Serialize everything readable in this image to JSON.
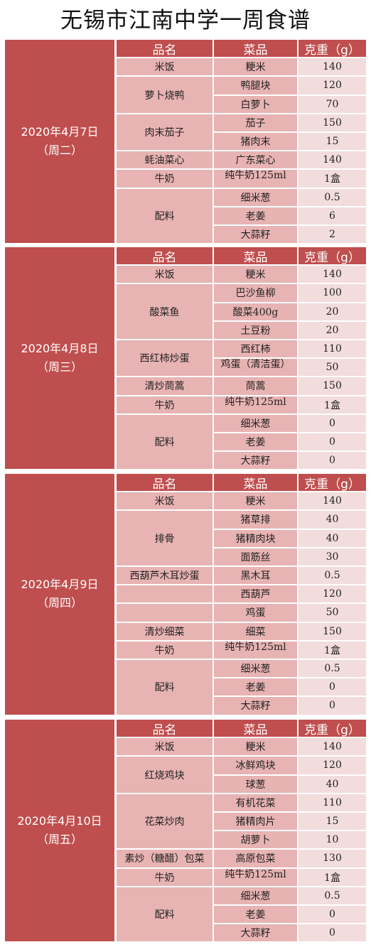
{
  "title": "无锡市江南中学一周食谱",
  "header": {
    "dish": "品名",
    "item": "菜品",
    "weight": "克重（g）"
  },
  "days": [
    {
      "date": "2020年4月7日",
      "weekday": "（周二）",
      "dishes": [
        {
          "name": "米饭",
          "items": [
            {
              "item": "粳米",
              "weight": "140"
            }
          ]
        },
        {
          "name": "萝卜烧鸭",
          "items": [
            {
              "item": "鸭腿块",
              "weight": "120"
            },
            {
              "item": "白萝卜",
              "weight": "70"
            }
          ]
        },
        {
          "name": "肉末茄子",
          "items": [
            {
              "item": "茄子",
              "weight": "150"
            },
            {
              "item": "猪肉末",
              "weight": "15"
            }
          ]
        },
        {
          "name": "蚝油菜心",
          "items": [
            {
              "item": "广东菜心",
              "weight": "140"
            }
          ]
        },
        {
          "name": "牛奶",
          "items": [
            {
              "item": "纯牛奶125ml",
              "weight": "1盒"
            }
          ]
        },
        {
          "name": "配料",
          "items": [
            {
              "item": "细米葱",
              "weight": "0.5"
            },
            {
              "item": "老姜",
              "weight": "6"
            },
            {
              "item": "大蒜籽",
              "weight": "2"
            }
          ]
        }
      ]
    },
    {
      "date": "2020年4月8日",
      "weekday": "（周三）",
      "dishes": [
        {
          "name": "米饭",
          "items": [
            {
              "item": "粳米",
              "weight": "140"
            }
          ]
        },
        {
          "name": "酸菜鱼",
          "items": [
            {
              "item": "巴沙鱼柳",
              "weight": "100"
            },
            {
              "item": "酸菜400g",
              "weight": "20"
            },
            {
              "item": "土豆粉",
              "weight": "20"
            }
          ]
        },
        {
          "name": "西红柿炒蛋",
          "items": [
            {
              "item": "西红柿",
              "weight": "110"
            },
            {
              "item": "鸡蛋（清洁蛋）",
              "weight": "50"
            }
          ]
        },
        {
          "name": "清炒茼蒿",
          "items": [
            {
              "item": "茼蒿",
              "weight": "150"
            }
          ]
        },
        {
          "name": "牛奶",
          "items": [
            {
              "item": "纯牛奶125ml",
              "weight": "1盒"
            }
          ]
        },
        {
          "name": "配料",
          "items": [
            {
              "item": "细米葱",
              "weight": "0"
            },
            {
              "item": "老姜",
              "weight": "0"
            },
            {
              "item": "大蒜籽",
              "weight": "0"
            }
          ]
        }
      ]
    },
    {
      "date": "2020年4月9日",
      "weekday": "（周四）",
      "dishes": [
        {
          "name": "米饭",
          "items": [
            {
              "item": "粳米",
              "weight": "140"
            }
          ]
        },
        {
          "name": "排骨",
          "items": [
            {
              "item": "猪草排",
              "weight": "40"
            },
            {
              "item": "猪精肉块",
              "weight": "40"
            },
            {
              "item": "面筋丝",
              "weight": "30"
            }
          ]
        },
        {
          "name": "西葫芦木耳炒蛋",
          "items": [
            {
              "item": "黑木耳",
              "weight": "0.5"
            }
          ]
        },
        {
          "name": "",
          "items": [
            {
              "item": "西葫芦",
              "weight": "120"
            }
          ]
        },
        {
          "name": "",
          "items": [
            {
              "item": "鸡蛋",
              "weight": "50"
            }
          ]
        },
        {
          "name": "清炒细菜",
          "items": [
            {
              "item": "细菜",
              "weight": "150"
            }
          ]
        },
        {
          "name": "牛奶",
          "items": [
            {
              "item": "纯牛奶125ml",
              "weight": "1盒"
            }
          ]
        },
        {
          "name": "配料",
          "items": [
            {
              "item": "细米葱",
              "weight": "0.5"
            },
            {
              "item": "老姜",
              "weight": "0"
            },
            {
              "item": "大蒜籽",
              "weight": "0"
            }
          ]
        }
      ]
    },
    {
      "date": "2020年4月10日",
      "weekday": "（周五）",
      "dishes": [
        {
          "name": "米饭",
          "items": [
            {
              "item": "粳米",
              "weight": "140"
            }
          ]
        },
        {
          "name": "红烧鸡块",
          "items": [
            {
              "item": "冰鲜鸡块",
              "weight": "120"
            },
            {
              "item": "球葱",
              "weight": "40"
            }
          ]
        },
        {
          "name": "花菜炒肉",
          "items": [
            {
              "item": "有机花菜",
              "weight": "110"
            },
            {
              "item": "猪精肉片",
              "weight": "15"
            },
            {
              "item": "胡萝卜",
              "weight": "10"
            }
          ]
        },
        {
          "name": "素炒（糖醋）包菜",
          "items": [
            {
              "item": "高原包菜",
              "weight": "130"
            }
          ]
        },
        {
          "name": "牛奶",
          "items": [
            {
              "item": "纯牛奶125ml",
              "weight": "1盒"
            }
          ]
        },
        {
          "name": "配料",
          "items": [
            {
              "item": "细米葱",
              "weight": "0.5"
            },
            {
              "item": "老姜",
              "weight": "0"
            },
            {
              "item": "大蒜籽",
              "weight": "0"
            }
          ]
        }
      ]
    }
  ]
}
